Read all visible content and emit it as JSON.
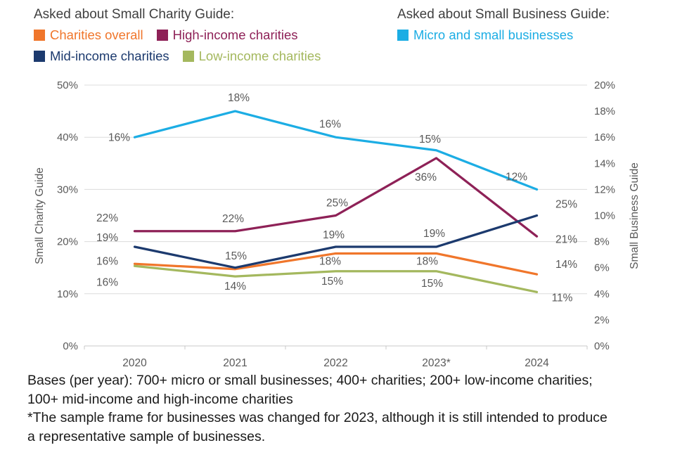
{
  "legend": {
    "charity": {
      "title": "Asked about Small Charity Guide:",
      "items": [
        {
          "label": "Charities overall",
          "color": "#F0762B"
        },
        {
          "label": "High-income charities",
          "color": "#8E2157"
        },
        {
          "label": "Mid-income charities",
          "color": "#1C3A6E"
        },
        {
          "label": "Low-income charities",
          "color": "#A4B85E"
        }
      ]
    },
    "business": {
      "title": "Asked about Small Business Guide:",
      "items": [
        {
          "label": "Micro and small businesses",
          "color": "#1CADE4"
        }
      ]
    }
  },
  "chart_data": {
    "type": "line",
    "categories": [
      "2020",
      "2021",
      "2022",
      "2023*",
      "2024"
    ],
    "series": [
      {
        "name": "Charities overall",
        "axis": "left",
        "color": "#F0762B",
        "values": [
          16,
          15,
          18,
          18,
          14
        ],
        "labels": [
          "16%",
          null,
          "18%",
          "18%",
          "14%"
        ]
      },
      {
        "name": "High-income charities",
        "axis": "left",
        "color": "#8E2157",
        "values": [
          22,
          22,
          25,
          36,
          21
        ],
        "labels": [
          "22%",
          "22%",
          "25%",
          "36%",
          "21%"
        ]
      },
      {
        "name": "Mid-income charities",
        "axis": "left",
        "color": "#1C3A6E",
        "values": [
          19,
          15,
          19,
          19,
          25
        ],
        "labels": [
          "19%",
          "15%",
          "19%",
          "19%",
          "25%"
        ]
      },
      {
        "name": "Low-income charities",
        "axis": "left",
        "color": "#A4B85E",
        "values": [
          16,
          14,
          15,
          15,
          11
        ],
        "labels": [
          "16%",
          "14%",
          "15%",
          "15%",
          "11%"
        ]
      },
      {
        "name": "Micro and small businesses",
        "axis": "right",
        "color": "#1CADE4",
        "values": [
          16,
          18,
          16,
          15,
          12
        ],
        "labels": [
          "16%",
          "18%",
          "16%",
          "15%",
          "12%"
        ]
      }
    ],
    "left_axis": {
      "title": "Small Charity Guide",
      "min": 0,
      "max": 50,
      "ticks": [
        "0%",
        "10%",
        "20%",
        "30%",
        "40%",
        "50%"
      ]
    },
    "right_axis": {
      "title": "Small Business Guide",
      "min": 0,
      "max": 20,
      "ticks": [
        "0%",
        "2%",
        "4%",
        "6%",
        "8%",
        "10%",
        "12%",
        "14%",
        "16%",
        "18%",
        "20%"
      ]
    },
    "grid": true,
    "legend_position": "top"
  },
  "footnotes": {
    "lines": [
      "Bases (per year): 700+ micro or small businesses; 400+ charities; 200+ low-income charities;",
      "100+ mid-income and high-income charities",
      "*The sample frame for businesses was changed for 2023, although it is still intended to produce",
      "a representative sample of businesses."
    ]
  }
}
